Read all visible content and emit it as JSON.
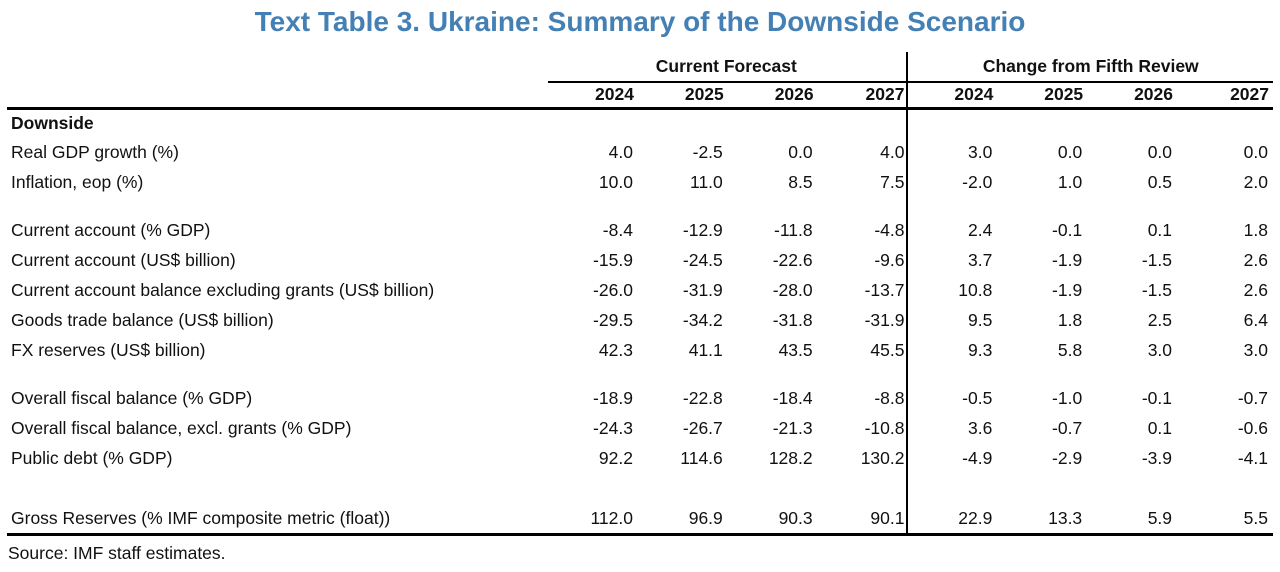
{
  "title": "Text Table 3. Ukraine: Summary of the Downside Scenario",
  "colors": {
    "title_blue": "#4580B4",
    "text": "#111111",
    "rule": "#000000"
  },
  "table": {
    "group_headers": [
      "Current Forecast",
      "Change from Fifth Review"
    ],
    "years_current": [
      "2024",
      "2025",
      "2026",
      "2027"
    ],
    "years_change": [
      "2024",
      "2025",
      "2026",
      "2027"
    ],
    "section_label": "Downside",
    "rows": [
      {
        "label": "Real GDP growth (%)",
        "current_forecast": [
          "4.0",
          "-2.5",
          "0.0",
          "4.0"
        ],
        "change_from_fifth_review": [
          "3.0",
          "0.0",
          "0.0",
          "0.0"
        ]
      },
      {
        "label": "Inflation, eop (%)",
        "current_forecast": [
          "10.0",
          "11.0",
          "8.5",
          "7.5"
        ],
        "change_from_fifth_review": [
          "-2.0",
          "1.0",
          "0.5",
          "2.0"
        ]
      },
      {
        "spacer": true
      },
      {
        "label": "Current account (% GDP)",
        "current_forecast": [
          "-8.4",
          "-12.9",
          "-11.8",
          "-4.8"
        ],
        "change_from_fifth_review": [
          "2.4",
          "-0.1",
          "0.1",
          "1.8"
        ]
      },
      {
        "label": "Current account (US$ billion)",
        "current_forecast": [
          "-15.9",
          "-24.5",
          "-22.6",
          "-9.6"
        ],
        "change_from_fifth_review": [
          "3.7",
          "-1.9",
          "-1.5",
          "2.6"
        ]
      },
      {
        "label": "Current account balance excluding grants (US$ billion)",
        "current_forecast": [
          "-26.0",
          "-31.9",
          "-28.0",
          "-13.7"
        ],
        "change_from_fifth_review": [
          "10.8",
          "-1.9",
          "-1.5",
          "2.6"
        ]
      },
      {
        "label": "Goods trade balance (US$ billion)",
        "current_forecast": [
          "-29.5",
          "-34.2",
          "-31.8",
          "-31.9"
        ],
        "change_from_fifth_review": [
          "9.5",
          "1.8",
          "2.5",
          "6.4"
        ]
      },
      {
        "label": "FX reserves (US$ billion)",
        "current_forecast": [
          "42.3",
          "41.1",
          "43.5",
          "45.5"
        ],
        "change_from_fifth_review": [
          "9.3",
          "5.8",
          "3.0",
          "3.0"
        ]
      },
      {
        "spacer": true
      },
      {
        "label": "Overall fiscal balance (% GDP)",
        "current_forecast": [
          "-18.9",
          "-22.8",
          "-18.4",
          "-8.8"
        ],
        "change_from_fifth_review": [
          "-0.5",
          "-1.0",
          "-0.1",
          "-0.7"
        ]
      },
      {
        "label": "Overall fiscal balance, excl. grants (% GDP)",
        "current_forecast": [
          "-24.3",
          "-26.7",
          "-21.3",
          "-10.8"
        ],
        "change_from_fifth_review": [
          "3.6",
          "-0.7",
          "0.1",
          "-0.6"
        ]
      },
      {
        "label": "Public debt (% GDP)",
        "current_forecast": [
          "92.2",
          "114.6",
          "128.2",
          "130.2"
        ],
        "change_from_fifth_review": [
          "-4.9",
          "-2.9",
          "-3.9",
          "-4.1"
        ]
      },
      {
        "spacer": true,
        "tall": true
      },
      {
        "label": "Gross Reserves (% IMF composite metric (float))",
        "current_forecast": [
          "112.0",
          "96.9",
          "90.3",
          "90.1"
        ],
        "change_from_fifth_review": [
          "22.9",
          "13.3",
          "5.9",
          "5.5"
        ]
      }
    ],
    "source": "Source: IMF staff estimates."
  }
}
